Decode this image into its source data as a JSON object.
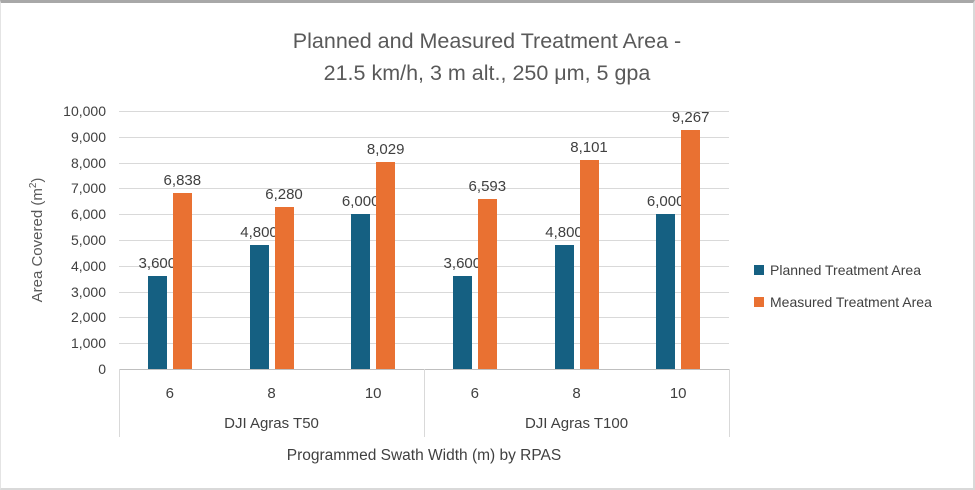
{
  "chart_data": {
    "type": "bar",
    "title_lines": [
      "Planned and Measured Treatment Area -",
      "21.5 km/h, 3 m alt., 250 μm, 5 gpa"
    ],
    "ylabel_prefix": "Area Covered (m",
    "ylabel_sup": "2",
    "ylabel_suffix": ")",
    "xlabel": "Programmed Swath Width (m) by RPAS",
    "ylim": [
      0,
      10000
    ],
    "ytick_step": 1000,
    "grid": true,
    "legend_position": "right",
    "groups": [
      {
        "label": "DJI Agras T50",
        "categories": [
          "6",
          "8",
          "10"
        ]
      },
      {
        "label": "DJI Agras T100",
        "categories": [
          "6",
          "8",
          "10"
        ]
      }
    ],
    "series": [
      {
        "name": "Planned Treatment Area",
        "key": "planned",
        "color": "#156082",
        "values": [
          3600,
          4800,
          6000,
          3600,
          4800,
          6000
        ]
      },
      {
        "name": "Measured Treatment Area",
        "key": "measured",
        "color": "#E97132",
        "values": [
          6838,
          6280,
          8029,
          6593,
          8101,
          9267
        ]
      }
    ]
  }
}
